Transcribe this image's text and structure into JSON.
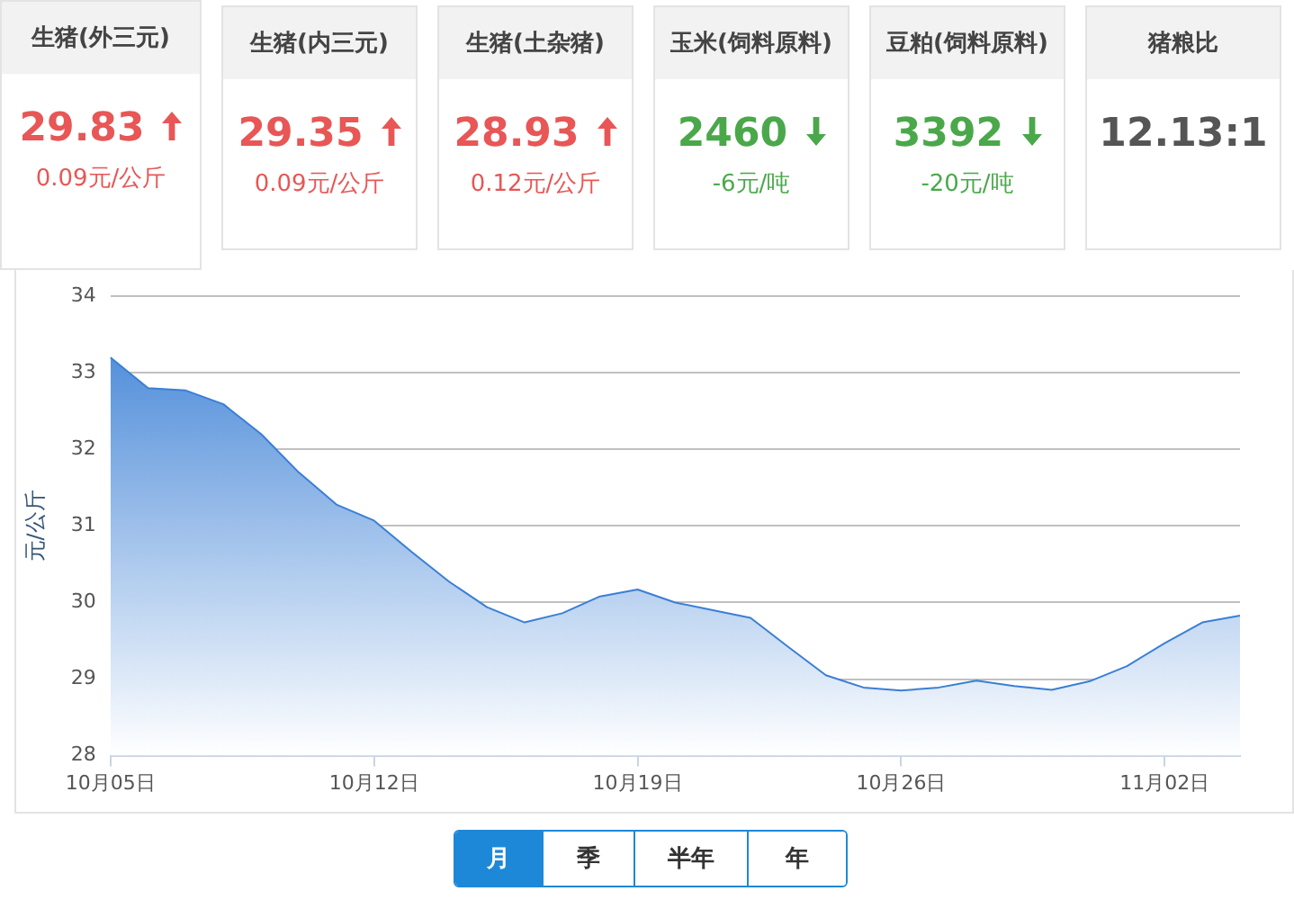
{
  "chart_data": [
    {
      "type": "other",
      "categories": [
        "生猪(外三元)",
        "生猪(内三元)",
        "生猪(土杂猪)",
        "玉米(饲料原料)",
        "豆粕(饲料原料)",
        "猪粮比"
      ],
      "value_labels": [
        "29.83",
        "29.35",
        "28.93",
        "2460",
        "3392",
        "12.13:1"
      ],
      "annotations": [
        "0.09元/公斤",
        "0.09元/公斤",
        "0.12元/公斤",
        "-6元/吨",
        "-20元/吨"
      ]
    },
    {
      "type": "area",
      "ylabel": "元/公斤",
      "categories": [
        "10月05日",
        null,
        null,
        null,
        null,
        null,
        null,
        "10月12日",
        null,
        null,
        null,
        null,
        null,
        null,
        "10月19日",
        null,
        null,
        null,
        null,
        null,
        null,
        "10月26日",
        null,
        null,
        null,
        null,
        null,
        null,
        "11月02日",
        null,
        null
      ],
      "values": [
        33.2,
        32.8,
        32.77,
        32.59,
        32.2,
        31.7,
        31.28,
        31.07,
        30.66,
        30.27,
        29.94,
        29.74,
        29.86,
        30.08,
        30.17,
        30.0,
        29.9,
        29.8,
        29.42,
        29.05,
        28.89,
        28.85,
        28.89,
        28.98,
        28.91,
        28.86,
        28.97,
        29.17,
        29.47,
        29.74,
        29.83
      ],
      "color": "#3a7fd5",
      "ylim": [
        28,
        34
      ],
      "yticks": [
        28,
        29,
        30,
        31,
        32,
        33,
        34
      ],
      "grid": "y"
    },
    {
      "type": "other",
      "categories": [
        "月",
        "季",
        "半年",
        "年"
      ]
    }
  ]
}
